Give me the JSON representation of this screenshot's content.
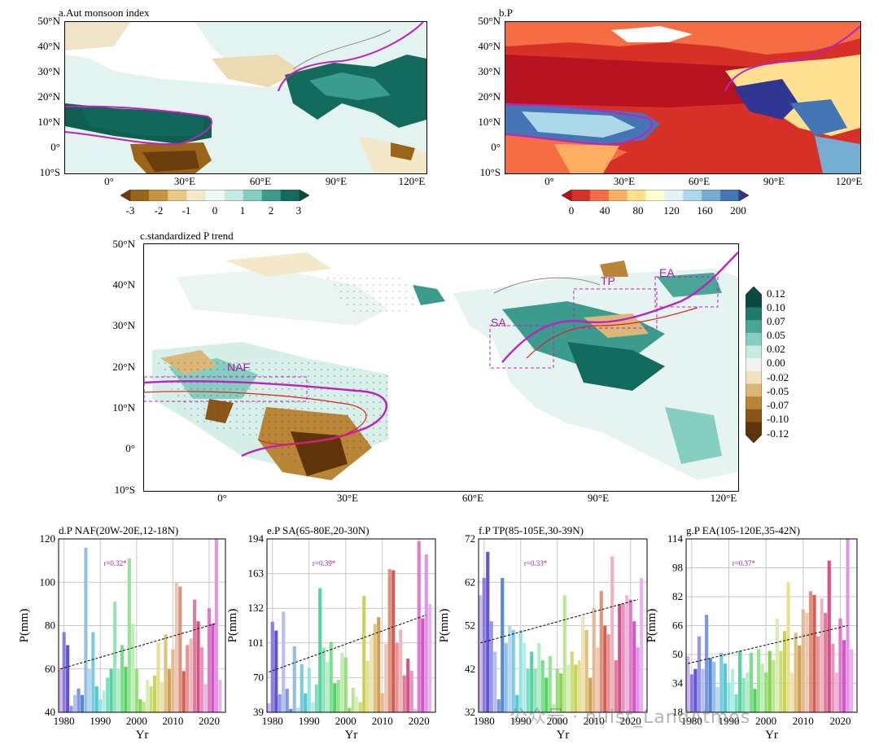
{
  "map_a": {
    "title": "a.Aut monsoon index",
    "lat_ticks": [
      "50°N",
      "40°N",
      "30°N",
      "20°N",
      "10°N",
      "0°",
      "10°S"
    ],
    "lon_ticks": [
      "0°",
      "30°E",
      "60°E",
      "90°E",
      "120°E"
    ],
    "colorbar_ticks": [
      "-3",
      "-2",
      "-1",
      "0",
      "1",
      "2",
      "3"
    ],
    "colorbar_colors": [
      "#6b3c0c",
      "#9c6418",
      "#c8953f",
      "#e6c98a",
      "#f3e9c8",
      "#eef7f4",
      "#c6ebe2",
      "#86cfc0",
      "#3b9c8e",
      "#136b5d",
      "#0a4a3f"
    ]
  },
  "map_b": {
    "title": "b.P",
    "lat_ticks": [
      "50°N",
      "40°N",
      "30°N",
      "20°N",
      "10°N",
      "0°",
      "10°S"
    ],
    "lon_ticks": [
      "0°",
      "30°E",
      "60°E",
      "90°E",
      "120°E"
    ],
    "colorbar_ticks": [
      "0",
      "40",
      "80",
      "120",
      "160",
      "200"
    ],
    "colorbar_colors": [
      "#b7121f",
      "#d73027",
      "#f46d43",
      "#fdae61",
      "#fee090",
      "#ffffd0",
      "#e0f3f8",
      "#abd9e9",
      "#74add1",
      "#4575b4",
      "#313695"
    ]
  },
  "map_c": {
    "title": "c.standardized P trend",
    "lat_ticks": [
      "50°N",
      "40°N",
      "30°N",
      "20°N",
      "10°N",
      "0°",
      "10°S"
    ],
    "lon_ticks": [
      "0°",
      "30°E",
      "60°E",
      "90°E",
      "120°E"
    ],
    "colorbar_ticks": [
      "0.12",
      "0.10",
      "0.07",
      "0.05",
      "0.02",
      "0.00",
      "-0.02",
      "-0.05",
      "-0.07",
      "-0.10",
      "-0.12"
    ],
    "colorbar_colors": [
      "#0a4a3f",
      "#1f7a6b",
      "#4aa696",
      "#86cfc0",
      "#c6ebe2",
      "#f2f2f0",
      "#f0e2bf",
      "#dcb878",
      "#b98536",
      "#8a5616",
      "#5e3408"
    ],
    "region_labels": [
      "NAF",
      "SA",
      "TP",
      "EA"
    ]
  },
  "chart_data": [
    {
      "type": "bar",
      "title": "d.P NAF(20W-20E,12-18N)",
      "xlabel": "Yr",
      "ylabel": "P(mm)",
      "ylim": [
        40,
        120
      ],
      "yticks": [
        40,
        60,
        80,
        100,
        120
      ],
      "xticks": [
        1980,
        1990,
        2000,
        2010,
        2020
      ],
      "xlim": [
        1978.5,
        2024.5
      ],
      "annotation": "r=0.32*",
      "trend": [
        1979,
        60,
        2022,
        81
      ],
      "years": [
        1979,
        1980,
        1981,
        1982,
        1983,
        1984,
        1985,
        1986,
        1987,
        1988,
        1989,
        1990,
        1991,
        1992,
        1993,
        1994,
        1995,
        1996,
        1997,
        1998,
        1999,
        2000,
        2001,
        2002,
        2003,
        2004,
        2005,
        2006,
        2007,
        2008,
        2009,
        2010,
        2011,
        2012,
        2013,
        2014,
        2015,
        2016,
        2017,
        2018,
        2019,
        2020,
        2021,
        2022,
        2023
      ],
      "values": [
        60,
        77,
        71,
        43,
        48,
        51,
        48,
        116,
        60,
        77,
        52,
        46,
        50,
        56,
        60,
        91,
        60,
        71,
        61,
        111,
        81,
        60,
        46,
        45,
        55,
        52,
        57,
        72,
        54,
        76,
        60,
        69,
        100,
        98,
        59,
        71,
        74,
        92,
        82,
        70,
        53,
        88,
        81,
        120,
        55
      ]
    },
    {
      "type": "bar",
      "title": "e.P SA(65-80E,20-30N)",
      "xlabel": "Yr",
      "ylabel": "P(mm)",
      "ylim": [
        39,
        194
      ],
      "yticks": [
        39,
        70,
        101,
        132,
        163,
        194
      ],
      "xticks": [
        1980,
        1990,
        2000,
        2010,
        2020
      ],
      "xlim": [
        1978.5,
        2024.5
      ],
      "annotation": "r=0.39*",
      "trend": [
        1979,
        75,
        2022,
        126
      ],
      "years": [
        1979,
        1980,
        1981,
        1982,
        1983,
        1984,
        1985,
        1986,
        1987,
        1988,
        1989,
        1990,
        1991,
        1992,
        1993,
        1994,
        1995,
        1996,
        1997,
        1998,
        1999,
        2000,
        2001,
        2002,
        2003,
        2004,
        2005,
        2006,
        2007,
        2008,
        2009,
        2010,
        2011,
        2012,
        2013,
        2014,
        2015,
        2016,
        2017,
        2018,
        2019,
        2020,
        2021,
        2022,
        2023
      ],
      "values": [
        47,
        120,
        112,
        55,
        129,
        60,
        42,
        98,
        43,
        82,
        56,
        79,
        48,
        64,
        150,
        97,
        84,
        102,
        65,
        68,
        92,
        88,
        43,
        61,
        53,
        48,
        143,
        85,
        109,
        118,
        124,
        56,
        100,
        167,
        166,
        101,
        113,
        72,
        87,
        76,
        42,
        192,
        123,
        180,
        136
      ]
    },
    {
      "type": "bar",
      "title": "f.P TP(85-105E,30-39N)",
      "xlabel": "Yr",
      "ylabel": "P(mm)",
      "ylim": [
        32,
        72
      ],
      "yticks": [
        32,
        42,
        52,
        62,
        72
      ],
      "xticks": [
        1980,
        1990,
        2000,
        2010,
        2020
      ],
      "xlim": [
        1978.5,
        2024.5
      ],
      "annotation": "r=0.33*",
      "trend": [
        1979,
        48,
        2022,
        58
      ],
      "years": [
        1979,
        1980,
        1981,
        1982,
        1983,
        1984,
        1985,
        1986,
        1987,
        1988,
        1989,
        1990,
        1991,
        1992,
        1993,
        1994,
        1995,
        1996,
        1997,
        1998,
        1999,
        2000,
        2001,
        2002,
        2003,
        2004,
        2005,
        2006,
        2007,
        2008,
        2009,
        2010,
        2011,
        2012,
        2013,
        2014,
        2015,
        2016,
        2017,
        2018,
        2019,
        2020,
        2021,
        2022,
        2023
      ],
      "values": [
        59,
        63,
        69,
        53,
        46,
        35,
        63,
        48,
        52,
        51,
        36,
        51,
        48,
        42,
        46,
        42,
        48,
        44,
        40,
        45,
        34,
        42,
        41,
        59,
        43,
        46,
        43,
        44,
        54,
        51,
        40,
        56,
        47,
        60,
        52,
        50,
        68,
        44,
        57,
        57,
        59,
        58,
        53,
        47,
        63
      ]
    },
    {
      "type": "bar",
      "title": "g.P EA(105-120E,35-42N)",
      "xlabel": "Yr",
      "ylabel": "P(mm)",
      "ylim": [
        18,
        114
      ],
      "yticks": [
        18,
        34,
        50,
        66,
        82,
        98,
        114
      ],
      "xticks": [
        1980,
        1990,
        2000,
        2010,
        2020
      ],
      "xlim": [
        1978.5,
        2024.5
      ],
      "annotation": "r=0.37*",
      "trend": [
        1979,
        45,
        2022,
        66
      ],
      "years": [
        1979,
        1980,
        1981,
        1982,
        1983,
        1984,
        1985,
        1986,
        1987,
        1988,
        1989,
        1990,
        1991,
        1992,
        1993,
        1994,
        1995,
        1996,
        1997,
        1998,
        1999,
        2000,
        2001,
        2002,
        2003,
        2004,
        2005,
        2006,
        2007,
        2008,
        2009,
        2010,
        2011,
        2012,
        2013,
        2014,
        2015,
        2016,
        2017,
        2018,
        2019,
        2020,
        2021,
        2022,
        2023
      ],
      "values": [
        49,
        39,
        42,
        60,
        42,
        72,
        48,
        46,
        32,
        51,
        45,
        34,
        42,
        28,
        52,
        37,
        40,
        51,
        31,
        53,
        45,
        40,
        52,
        47,
        70,
        52,
        63,
        90,
        40,
        62,
        55,
        75,
        73,
        85,
        83,
        60,
        81,
        73,
        102,
        56,
        40,
        70,
        58,
        114,
        53
      ]
    }
  ],
  "watermark": "公众号 · nuist_LandAtmos"
}
